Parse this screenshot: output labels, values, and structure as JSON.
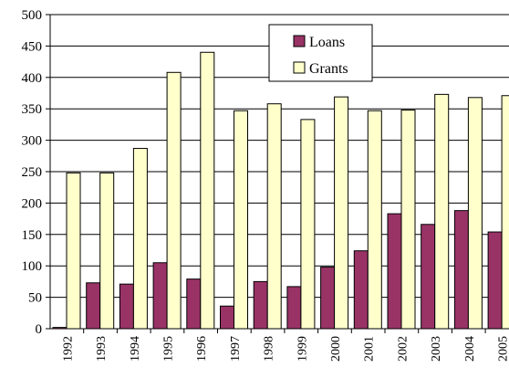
{
  "chart_data": {
    "type": "bar",
    "categories": [
      "1992",
      "1993",
      "1994",
      "1995",
      "1996",
      "1997",
      "1998",
      "1999",
      "2000",
      "2001",
      "2002",
      "2003",
      "2004",
      "2005"
    ],
    "series": [
      {
        "name": "Loans",
        "color": "#993366",
        "values": [
          2,
          73,
          71,
          105,
          79,
          36,
          75,
          67,
          98,
          124,
          183,
          166,
          188,
          154
        ]
      },
      {
        "name": "Grants",
        "color": "#ffffcc",
        "values": [
          248,
          248,
          287,
          408,
          440,
          347,
          358,
          333,
          369,
          347,
          348,
          373,
          368,
          371
        ]
      }
    ],
    "y_ticks": [
      "0",
      "50",
      "100",
      "150",
      "200",
      "250",
      "300",
      "350",
      "400",
      "450",
      "500"
    ],
    "ylim": [
      0,
      500
    ],
    "title": "",
    "xlabel": "",
    "ylabel": "",
    "grid": true,
    "legend_position": "top-center"
  }
}
